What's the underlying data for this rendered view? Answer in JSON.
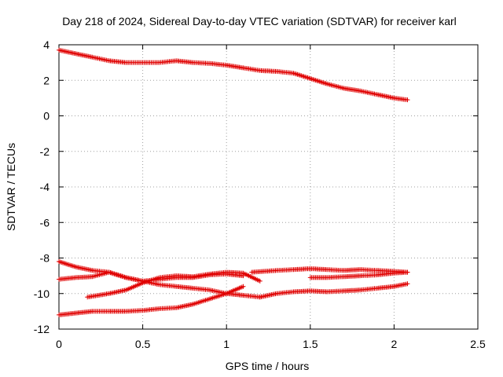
{
  "chart_data": {
    "type": "scatter",
    "title": "Day 218 of 2024, Sidereal Day-to-day VTEC variation (SDTVAR) for receiver karl",
    "xlabel": "GPS time / hours",
    "ylabel": "SDTVAR / TECUs",
    "xlim": [
      0,
      2.5
    ],
    "ylim": [
      -12,
      4
    ],
    "xticks": [
      0,
      0.5,
      1,
      1.5,
      2,
      2.5
    ],
    "xtick_labels": [
      "0",
      "0.5",
      "1",
      "1.5",
      "2",
      "2.5"
    ],
    "yticks": [
      4,
      2,
      0,
      -2,
      -4,
      -6,
      -8,
      -10,
      -12
    ],
    "ytick_labels": [
      "4",
      "2",
      "0",
      "-2",
      "-4",
      "-6",
      "-8",
      "-10",
      "-12"
    ],
    "grid": true,
    "marker": "plus",
    "color": "#e00000",
    "series": [
      {
        "name": "track-upper",
        "x": [
          0,
          0.1,
          0.2,
          0.3,
          0.4,
          0.5,
          0.6,
          0.7,
          0.8,
          0.9,
          1.0,
          1.1,
          1.2,
          1.3,
          1.4,
          1.5,
          1.6,
          1.7,
          1.8,
          1.9,
          2.0,
          2.08
        ],
        "y": [
          3.7,
          3.5,
          3.3,
          3.1,
          3.0,
          3.0,
          3.0,
          3.1,
          3.0,
          2.95,
          2.85,
          2.7,
          2.55,
          2.5,
          2.4,
          2.1,
          1.8,
          1.55,
          1.4,
          1.2,
          1.0,
          0.9
        ]
      },
      {
        "name": "track-a",
        "x": [
          0,
          0.1,
          0.2,
          0.3,
          0.4,
          0.5,
          0.6,
          0.7,
          0.8,
          0.9,
          1.0,
          1.1,
          1.2
        ],
        "y": [
          -8.2,
          -8.5,
          -8.7,
          -8.8,
          -9.1,
          -9.3,
          -9.5,
          -9.6,
          -9.7,
          -9.8,
          -10.0,
          -10.1,
          -10.2
        ]
      },
      {
        "name": "track-b",
        "x": [
          1.2,
          1.3,
          1.4,
          1.5,
          1.6,
          1.7,
          1.8,
          1.9,
          2.0,
          2.08
        ],
        "y": [
          -10.2,
          -10.0,
          -9.9,
          -9.85,
          -9.9,
          -9.85,
          -9.8,
          -9.7,
          -9.6,
          -9.45
        ]
      },
      {
        "name": "track-c",
        "x": [
          0,
          0.1,
          0.2,
          0.3,
          0.4,
          0.5,
          0.6,
          0.7,
          0.8,
          0.9,
          1.0,
          1.1
        ],
        "y": [
          -9.2,
          -9.1,
          -9.05,
          -8.8,
          -9.1,
          -9.3,
          -9.2,
          -9.1,
          -9.1,
          -8.95,
          -8.9,
          -9.0
        ]
      },
      {
        "name": "track-d",
        "x": [
          0.17,
          0.3,
          0.4,
          0.5,
          0.6,
          0.7,
          0.8,
          0.9,
          1.0,
          1.1,
          1.2
        ],
        "y": [
          -10.2,
          -10.0,
          -9.8,
          -9.4,
          -9.1,
          -9.0,
          -9.05,
          -8.9,
          -8.8,
          -8.85,
          -9.3
        ]
      },
      {
        "name": "track-e",
        "x": [
          1.15,
          1.3,
          1.4,
          1.5,
          1.6,
          1.7,
          1.8,
          1.9,
          2.0,
          2.08
        ],
        "y": [
          -8.8,
          -8.7,
          -8.65,
          -8.6,
          -8.65,
          -8.7,
          -8.65,
          -8.7,
          -8.75,
          -8.8
        ]
      },
      {
        "name": "track-f",
        "x": [
          1.5,
          1.6,
          1.7,
          1.8,
          1.9,
          2.0,
          2.08
        ],
        "y": [
          -9.1,
          -9.1,
          -9.05,
          -9.0,
          -8.95,
          -8.85,
          -8.8
        ]
      },
      {
        "name": "track-lower",
        "x": [
          0,
          0.1,
          0.2,
          0.3,
          0.4,
          0.5,
          0.6,
          0.7,
          0.8,
          0.9,
          1.0,
          1.1
        ],
        "y": [
          -11.2,
          -11.1,
          -11.0,
          -11.0,
          -11.0,
          -10.95,
          -10.85,
          -10.8,
          -10.6,
          -10.3,
          -10.0,
          -9.6
        ]
      }
    ]
  }
}
